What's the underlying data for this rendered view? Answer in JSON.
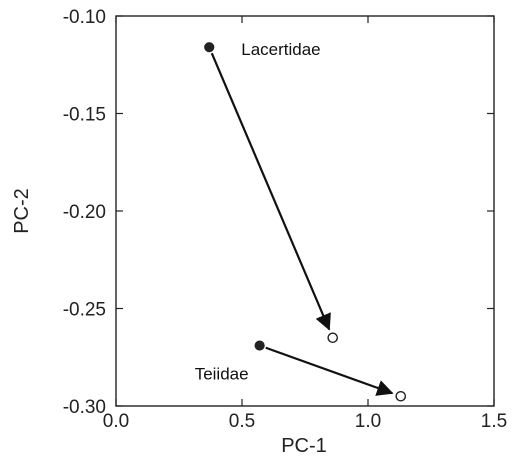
{
  "colors": {
    "axis": "#222222",
    "marker_filled": "#222222",
    "marker_open_fill": "#ffffff",
    "arrow": "#111111"
  },
  "chart_data": {
    "type": "scatter",
    "title": "",
    "xlabel": "PC-1",
    "ylabel": "PC-2",
    "xlim": [
      0.0,
      1.5
    ],
    "ylim": [
      -0.3,
      -0.1
    ],
    "x_ticks": [
      0.0,
      0.5,
      1.0,
      1.5
    ],
    "x_tick_labels": [
      "0.0",
      "0.5",
      "1.0",
      "1.5"
    ],
    "y_ticks": [
      -0.1,
      -0.15,
      -0.2,
      -0.25,
      -0.3
    ],
    "y_tick_labels": [
      "-0.10",
      "-0.15",
      "-0.20",
      "-0.25",
      "-0.30"
    ],
    "grid": false,
    "legend": "none",
    "series": [
      {
        "name": "Lacertidae",
        "start": {
          "x": 0.37,
          "y": -0.116
        },
        "end": {
          "x": 0.86,
          "y": -0.265
        },
        "start_marker": "filled",
        "end_marker": "open"
      },
      {
        "name": "Teiidae",
        "start": {
          "x": 0.57,
          "y": -0.269
        },
        "end": {
          "x": 1.13,
          "y": -0.295
        },
        "start_marker": "filled",
        "end_marker": "open"
      }
    ]
  }
}
